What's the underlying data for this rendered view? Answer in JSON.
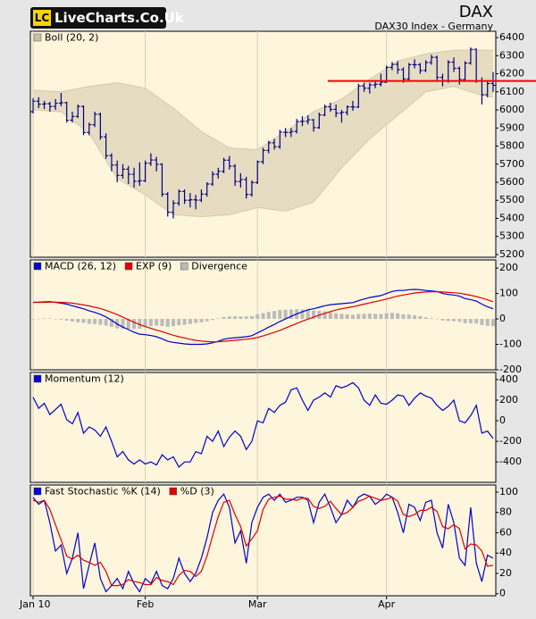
{
  "header": {
    "logo_mark": "LC",
    "logo_text": "LiveCharts.Co.Uk",
    "symbol": "DAX",
    "description": "DAX30 Index - Germany"
  },
  "chart_data": [
    {
      "type": "ohlc",
      "color": "#000080",
      "bands": {
        "name": "Boll (20, 2)",
        "color": "#e6dcc2",
        "legend_color": "#c8c0a8",
        "upper": [
          6110,
          6108,
          6106,
          6104,
          6102,
          6100,
          6106,
          6112,
          6118,
          6124,
          6130,
          6134,
          6138,
          6142,
          6146,
          6150,
          6144,
          6138,
          6132,
          6126,
          6120,
          6098,
          6076,
          6054,
          6032,
          6010,
          5984,
          5958,
          5932,
          5906,
          5880,
          5862,
          5844,
          5826,
          5808,
          5790,
          5788,
          5786,
          5784,
          5782,
          5780,
          5800,
          5820,
          5840,
          5860,
          5880,
          5902,
          5924,
          5946,
          5968,
          5990,
          6004,
          6018,
          6032,
          6046,
          6060,
          6082,
          6104,
          6126,
          6148,
          6170,
          6190,
          6210,
          6230,
          6250,
          6270,
          6278,
          6286,
          6294,
          6302,
          6310,
          6314,
          6318,
          6322,
          6326,
          6330,
          6330,
          6330,
          6330,
          6330,
          6330,
          6330,
          6330
        ],
        "lower": [
          6000,
          5998,
          5996,
          5994,
          5992,
          5990,
          5966,
          5942,
          5918,
          5894,
          5870,
          5820,
          5770,
          5720,
          5670,
          5620,
          5602,
          5584,
          5566,
          5548,
          5530,
          5508,
          5486,
          5464,
          5442,
          5420,
          5418,
          5416,
          5414,
          5412,
          5410,
          5412,
          5414,
          5416,
          5418,
          5420,
          5428,
          5436,
          5444,
          5452,
          5460,
          5456,
          5452,
          5448,
          5444,
          5440,
          5450,
          5460,
          5470,
          5480,
          5490,
          5528,
          5566,
          5604,
          5642,
          5680,
          5712,
          5744,
          5776,
          5808,
          5840,
          5866,
          5892,
          5918,
          5944,
          5970,
          5996,
          6022,
          6048,
          6074,
          6100,
          6106,
          6112,
          6118,
          6124,
          6130,
          6120,
          6110,
          6100,
          6090,
          6080,
          6075,
          6070
        ]
      },
      "open": [
        5990,
        6048,
        6032,
        6034,
        6019,
        6037,
        6040,
        5943,
        5964,
        6019,
        5875,
        5918,
        5976,
        5851,
        5747,
        5695,
        5638,
        5672,
        5644,
        5605,
        5608,
        5705,
        5723,
        5699,
        5534,
        5434,
        5484,
        5549,
        5500,
        5503,
        5501,
        5534,
        5590,
        5644,
        5660,
        5722,
        5689,
        5604,
        5615,
        5532,
        5598,
        5713,
        5776,
        5818,
        5796,
        5877,
        5875,
        5881,
        5936,
        5937,
        5945,
        5902,
        5972,
        6017,
        6003,
        5982,
        5987,
        6017,
        6016,
        6132,
        6120,
        6138,
        6142,
        6153,
        6235,
        6252,
        6223,
        6171,
        6250,
        6250,
        6218,
        6262,
        6291,
        6180,
        6162,
        6264,
        6230,
        6168,
        6259,
        6335,
        6160,
        6084,
        6146
      ],
      "high": [
        6065,
        6070,
        6050,
        6045,
        6060,
        6094,
        6045,
        5990,
        6030,
        6025,
        5930,
        5990,
        5985,
        5870,
        5760,
        5720,
        5700,
        5690,
        5680,
        5710,
        5720,
        5760,
        5740,
        5705,
        5545,
        5500,
        5560,
        5560,
        5540,
        5530,
        5560,
        5600,
        5660,
        5680,
        5735,
        5745,
        5700,
        5650,
        5630,
        5610,
        5720,
        5790,
        5830,
        5840,
        5890,
        5900,
        5900,
        5950,
        5965,
        5970,
        5950,
        5985,
        6030,
        6040,
        6030,
        6000,
        6025,
        6050,
        6145,
        6150,
        6150,
        6165,
        6200,
        6245,
        6265,
        6270,
        6235,
        6260,
        6280,
        6260,
        6275,
        6305,
        6300,
        6200,
        6275,
        6290,
        6240,
        6270,
        6345,
        6340,
        6180,
        6160,
        6210
      ],
      "low": [
        5980,
        6010,
        6005,
        5990,
        6000,
        6020,
        5930,
        5930,
        5955,
        5860,
        5860,
        5905,
        5835,
        5730,
        5660,
        5600,
        5620,
        5590,
        5570,
        5580,
        5600,
        5690,
        5660,
        5520,
        5410,
        5400,
        5470,
        5480,
        5460,
        5450,
        5490,
        5520,
        5580,
        5620,
        5650,
        5670,
        5580,
        5570,
        5510,
        5520,
        5590,
        5700,
        5760,
        5780,
        5785,
        5850,
        5850,
        5870,
        5910,
        5920,
        5880,
        5895,
        5965,
        5990,
        5960,
        5930,
        5970,
        5995,
        6010,
        6100,
        6090,
        6120,
        6130,
        6150,
        6220,
        6200,
        6150,
        6165,
        6230,
        6200,
        6210,
        6250,
        6160,
        6130,
        6150,
        6210,
        6140,
        6160,
        6250,
        6150,
        6030,
        6070,
        6100
      ],
      "close": [
        6048,
        6032,
        6034,
        6019,
        6037,
        6040,
        5943,
        5964,
        6019,
        5875,
        5918,
        5976,
        5851,
        5747,
        5695,
        5638,
        5672,
        5644,
        5605,
        5608,
        5705,
        5723,
        5699,
        5534,
        5434,
        5484,
        5549,
        5500,
        5503,
        5501,
        5534,
        5590,
        5644,
        5660,
        5722,
        5689,
        5604,
        5615,
        5532,
        5598,
        5713,
        5776,
        5818,
        5796,
        5877,
        5875,
        5881,
        5936,
        5937,
        5945,
        5902,
        5972,
        6017,
        6003,
        5982,
        5987,
        6017,
        6016,
        6132,
        6120,
        6138,
        6142,
        6153,
        6235,
        6252,
        6223,
        6171,
        6250,
        6250,
        6218,
        6262,
        6291,
        6180,
        6162,
        6264,
        6230,
        6168,
        6259,
        6335,
        6160,
        6084,
        6146,
        6136
      ],
      "reference_line": {
        "value": 6160,
        "color": "#ff0000"
      },
      "ylim": [
        5185,
        6435
      ],
      "yticks": [
        5200,
        5300,
        5400,
        5500,
        5600,
        5700,
        5800,
        5900,
        6000,
        6100,
        6200,
        6300,
        6400
      ]
    },
    {
      "type": "line",
      "ylim": [
        -200,
        232
      ],
      "yticks": [
        -200,
        -100,
        0,
        100,
        200
      ],
      "series": [
        {
          "name": "MACD (26, 12)",
          "color": "#0000cc",
          "values": [
            65,
            66,
            67,
            68,
            65,
            62,
            58,
            52,
            46,
            40,
            32,
            26,
            18,
            8,
            -5,
            -20,
            -32,
            -42,
            -52,
            -60,
            -62,
            -65,
            -70,
            -78,
            -88,
            -92,
            -95,
            -98,
            -100,
            -100,
            -100,
            -98,
            -94,
            -88,
            -80,
            -76,
            -74,
            -72,
            -70,
            -66,
            -55,
            -44,
            -32,
            -22,
            -10,
            0,
            10,
            20,
            28,
            36,
            40,
            46,
            52,
            56,
            58,
            60,
            62,
            64,
            72,
            78,
            84,
            88,
            92,
            100,
            108,
            112,
            112,
            115,
            116,
            115,
            112,
            110,
            108,
            100,
            96,
            94,
            90,
            80,
            76,
            70,
            58,
            48,
            40
          ]
        },
        {
          "name": "EXP (9)",
          "color": "#dd0000",
          "values": [
            65,
            65,
            65,
            66,
            66,
            65,
            64,
            62,
            59,
            55,
            51,
            46,
            41,
            34,
            26,
            17,
            7,
            -3,
            -13,
            -22,
            -30,
            -37,
            -44,
            -50,
            -57,
            -64,
            -70,
            -75,
            -80,
            -84,
            -87,
            -89,
            -90,
            -90,
            -88,
            -86,
            -84,
            -82,
            -80,
            -77,
            -73,
            -67,
            -60,
            -53,
            -45,
            -36,
            -27,
            -18,
            -9,
            -1,
            7,
            15,
            22,
            29,
            35,
            40,
            44,
            48,
            53,
            58,
            63,
            68,
            73,
            78,
            84,
            90,
            94,
            98,
            102,
            104,
            106,
            107,
            107,
            106,
            104,
            103,
            101,
            97,
            93,
            88,
            82,
            75,
            68
          ]
        },
        {
          "name": "Divergence",
          "color": "#bbbbbb",
          "type": "bar",
          "values": [
            0,
            1,
            2,
            2,
            -1,
            -3,
            -6,
            -10,
            -13,
            -15,
            -19,
            -20,
            -23,
            -26,
            -31,
            -37,
            -39,
            -39,
            -39,
            -38,
            -32,
            -28,
            -26,
            -28,
            -31,
            -28,
            -25,
            -23,
            -20,
            -16,
            -13,
            -9,
            -4,
            2,
            8,
            10,
            10,
            10,
            10,
            11,
            18,
            23,
            28,
            31,
            35,
            36,
            37,
            38,
            37,
            37,
            33,
            31,
            30,
            27,
            23,
            20,
            18,
            16,
            19,
            20,
            21,
            20,
            19,
            22,
            24,
            22,
            18,
            17,
            14,
            11,
            6,
            3,
            1,
            -6,
            -8,
            -9,
            -11,
            -17,
            -17,
            -18,
            -24,
            -27,
            -28
          ]
        }
      ]
    },
    {
      "type": "line",
      "ylim": [
        -598,
        469
      ],
      "yticks": [
        -400,
        -200,
        0,
        200,
        400
      ],
      "series": [
        {
          "name": "Momentum (12)",
          "color": "#0000cc",
          "values": [
            230,
            120,
            170,
            60,
            110,
            160,
            10,
            -30,
            80,
            -120,
            -60,
            -90,
            -150,
            -60,
            -200,
            -350,
            -300,
            -380,
            -420,
            -380,
            -420,
            -400,
            -430,
            -330,
            -380,
            -350,
            -450,
            -400,
            -400,
            -300,
            -320,
            -150,
            -200,
            -100,
            -250,
            -160,
            -100,
            -150,
            -280,
            -200,
            0,
            -20,
            120,
            80,
            150,
            180,
            300,
            320,
            200,
            100,
            200,
            230,
            270,
            230,
            340,
            320,
            340,
            370,
            320,
            200,
            150,
            250,
            170,
            160,
            200,
            250,
            240,
            150,
            220,
            270,
            240,
            220,
            150,
            100,
            140,
            200,
            0,
            -20,
            50,
            150,
            -120,
            -100,
            -170
          ]
        }
      ]
    },
    {
      "type": "line",
      "ylim": [
        -2,
        107
      ],
      "yticks": [
        0,
        20,
        40,
        60,
        80,
        100
      ],
      "categories": [
        "Jan 10",
        null,
        null,
        null,
        null,
        null,
        null,
        null,
        null,
        null,
        null,
        null,
        null,
        null,
        null,
        null,
        null,
        null,
        null,
        null,
        "Feb",
        null,
        null,
        null,
        null,
        null,
        null,
        null,
        null,
        null,
        null,
        null,
        null,
        null,
        null,
        null,
        null,
        null,
        null,
        null,
        "Mar",
        null,
        null,
        null,
        null,
        null,
        null,
        null,
        null,
        null,
        null,
        null,
        null,
        null,
        null,
        null,
        null,
        null,
        null,
        null,
        null,
        null,
        null,
        "Apr",
        null,
        null,
        null,
        null,
        null,
        null,
        null,
        null,
        null,
        null,
        null,
        null,
        null,
        null,
        null,
        null,
        null,
        null,
        null
      ],
      "series": [
        {
          "name": "Fast Stochastic %K (14)",
          "color": "#0000cc",
          "values": [
            95,
            88,
            92,
            70,
            42,
            48,
            20,
            35,
            60,
            5,
            28,
            50,
            15,
            2,
            8,
            15,
            5,
            22,
            10,
            2,
            15,
            10,
            22,
            8,
            5,
            15,
            35,
            20,
            12,
            20,
            35,
            55,
            80,
            92,
            98,
            85,
            50,
            62,
            30,
            70,
            85,
            95,
            98,
            92,
            98,
            90,
            92,
            95,
            95,
            92,
            70,
            90,
            98,
            85,
            70,
            78,
            92,
            85,
            95,
            98,
            96,
            88,
            92,
            98,
            95,
            80,
            60,
            88,
            85,
            72,
            90,
            92,
            60,
            45,
            88,
            70,
            35,
            28,
            85,
            30,
            12,
            38,
            35
          ]
        },
        {
          "name": "%D (3)",
          "color": "#dd0000",
          "values": [
            92,
            90,
            92,
            83,
            68,
            53,
            37,
            34,
            38,
            33,
            31,
            28,
            31,
            22,
            8,
            8,
            9,
            14,
            12,
            11,
            9,
            9,
            16,
            13,
            12,
            9,
            18,
            23,
            22,
            17,
            22,
            37,
            57,
            76,
            90,
            92,
            78,
            66,
            47,
            54,
            62,
            83,
            93,
            95,
            96,
            93,
            93,
            92,
            94,
            94,
            86,
            84,
            86,
            91,
            84,
            78,
            80,
            85,
            91,
            93,
            96,
            94,
            92,
            93,
            95,
            91,
            78,
            76,
            78,
            82,
            82,
            85,
            81,
            66,
            64,
            68,
            64,
            44,
            49,
            48,
            42,
            27,
            28
          ]
        }
      ]
    }
  ]
}
